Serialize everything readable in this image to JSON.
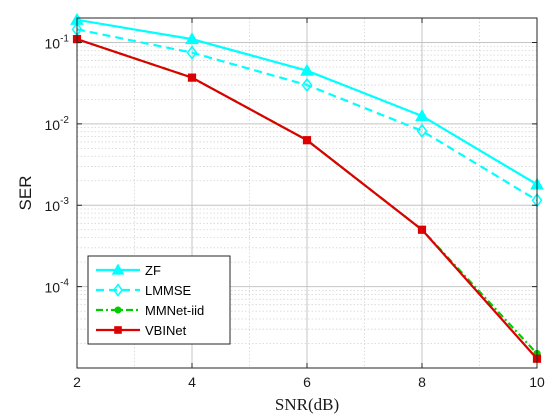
{
  "chart_data": {
    "type": "line",
    "xlabel": "SNR(dB)",
    "ylabel": "SER",
    "x": [
      2,
      4,
      6,
      8,
      10
    ],
    "xlim": [
      2,
      10
    ],
    "ylim": [
      1e-05,
      0.2
    ],
    "yscale": "log",
    "x_ticks": [
      "2",
      "4",
      "6",
      "8",
      "10"
    ],
    "y_ticks": [
      {
        "value": 0.1,
        "base": "10",
        "exp": "-1"
      },
      {
        "value": 0.01,
        "base": "10",
        "exp": "-2"
      },
      {
        "value": 0.001,
        "base": "10",
        "exp": "-3"
      },
      {
        "value": 0.0001,
        "base": "10",
        "exp": "-4"
      }
    ],
    "grid": true,
    "legend_position": "bottom-left",
    "series": [
      {
        "name": "ZF",
        "values": [
          0.19,
          0.11,
          0.045,
          0.0125,
          0.0018
        ],
        "color": "#00ffff",
        "dash": "solid",
        "marker": "triangle"
      },
      {
        "name": "LMMSE",
        "values": [
          0.145,
          0.075,
          0.03,
          0.0082,
          0.00115
        ],
        "color": "#00ffff",
        "dash": "dashed",
        "marker": "diamond"
      },
      {
        "name": "MMNet-iid",
        "values": [
          0.11,
          0.037,
          0.0063,
          0.0005,
          1.5e-05
        ],
        "color": "#00cc00",
        "dash": "dashdot",
        "marker": "circle"
      },
      {
        "name": "VBINet",
        "values": [
          0.11,
          0.037,
          0.0063,
          0.0005,
          1.3e-05
        ],
        "color": "#dd0000",
        "dash": "solid",
        "marker": "square"
      }
    ]
  }
}
